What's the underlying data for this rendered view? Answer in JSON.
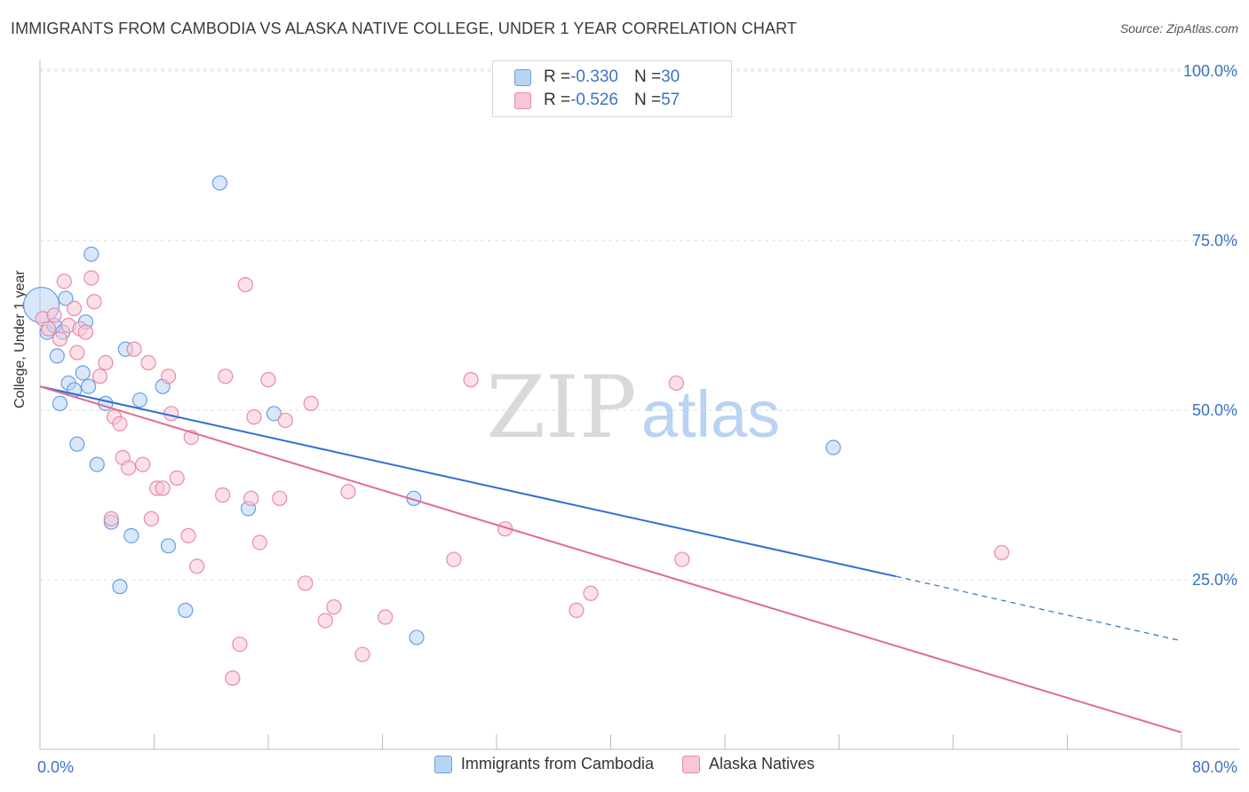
{
  "header": {
    "title": "IMMIGRANTS FROM CAMBODIA VS ALASKA NATIVE COLLEGE, UNDER 1 YEAR CORRELATION CHART",
    "source": "Source: ZipAtlas.com"
  },
  "watermark": {
    "zip": "ZIP",
    "atlas": "atlas"
  },
  "legend_top": {
    "rows": [
      {
        "r_label": "R = ",
        "r_value": "-0.330",
        "n_label": "N = ",
        "n_value": "30",
        "color": "#b8d4f5"
      },
      {
        "r_label": "R = ",
        "r_value": "-0.526",
        "n_label": "N = ",
        "n_value": "57",
        "color": "#f9c6d6"
      }
    ]
  },
  "legend_bottom": {
    "items": [
      {
        "label": "Immigrants from Cambodia",
        "color": "#b8d4f5",
        "border": "#6a9ee0"
      },
      {
        "label": "Alaska Natives",
        "color": "#f9c6d6",
        "border": "#e88aa8"
      }
    ]
  },
  "chart_data": {
    "type": "scatter",
    "title": "IMMIGRANTS FROM CAMBODIA VS ALASKA NATIVE COLLEGE, UNDER 1 YEAR CORRELATION CHART",
    "xlabel": "",
    "ylabel": "College, Under 1 year",
    "xlim": [
      0,
      80
    ],
    "ylim": [
      0,
      105
    ],
    "x_tick_labels": [
      "0.0%",
      "80.0%"
    ],
    "y_ticks": [
      25,
      50,
      75,
      100
    ],
    "y_tick_labels": [
      "25.0%",
      "50.0%",
      "75.0%",
      "100.0%"
    ],
    "grid": true,
    "legend_position": "top-center",
    "series": [
      {
        "name": "Immigrants from Cambodia",
        "color": "#6a9ee0",
        "fill": "#b8d4f5",
        "line_color": "#2f6fcf",
        "points": [
          [
            0.1,
            65.5
          ],
          [
            0.5,
            61.5
          ],
          [
            1.0,
            62.5
          ],
          [
            1.2,
            58.0
          ],
          [
            1.4,
            51.0
          ],
          [
            1.6,
            61.5
          ],
          [
            1.8,
            66.5
          ],
          [
            2.0,
            54.0
          ],
          [
            2.4,
            53.0
          ],
          [
            2.6,
            45.0
          ],
          [
            3.0,
            55.5
          ],
          [
            3.2,
            63.0
          ],
          [
            3.4,
            53.5
          ],
          [
            3.6,
            73.0
          ],
          [
            4.0,
            42.0
          ],
          [
            4.6,
            51.0
          ],
          [
            5.0,
            33.5
          ],
          [
            5.6,
            24.0
          ],
          [
            6.0,
            59.0
          ],
          [
            6.4,
            31.5
          ],
          [
            7.0,
            51.5
          ],
          [
            8.6,
            53.5
          ],
          [
            9.0,
            30.0
          ],
          [
            10.2,
            20.5
          ],
          [
            12.6,
            83.5
          ],
          [
            14.6,
            35.5
          ],
          [
            16.4,
            49.5
          ],
          [
            26.2,
            37.0
          ],
          [
            26.4,
            16.5
          ],
          [
            55.6,
            44.5
          ]
        ],
        "trend": {
          "x": [
            0,
            60
          ],
          "y": [
            53.5,
            25.5
          ],
          "dashed_to": [
            80,
            16.0
          ]
        }
      },
      {
        "name": "Alaska Natives",
        "color": "#e88aa8",
        "fill": "#f9c6d6",
        "line_color": "#e06b94",
        "points": [
          [
            0.2,
            63.5
          ],
          [
            0.6,
            62.0
          ],
          [
            1.0,
            64.0
          ],
          [
            1.4,
            60.5
          ],
          [
            1.7,
            69.0
          ],
          [
            2.0,
            62.5
          ],
          [
            2.4,
            65.0
          ],
          [
            2.6,
            58.5
          ],
          [
            2.8,
            62.0
          ],
          [
            3.2,
            61.5
          ],
          [
            3.6,
            69.5
          ],
          [
            3.8,
            66.0
          ],
          [
            4.2,
            55.0
          ],
          [
            4.6,
            57.0
          ],
          [
            5.0,
            34.0
          ],
          [
            5.2,
            49.0
          ],
          [
            5.6,
            48.0
          ],
          [
            5.8,
            43.0
          ],
          [
            6.2,
            41.5
          ],
          [
            6.6,
            59.0
          ],
          [
            7.2,
            42.0
          ],
          [
            7.6,
            57.0
          ],
          [
            7.8,
            34.0
          ],
          [
            8.2,
            38.5
          ],
          [
            8.6,
            38.5
          ],
          [
            9.0,
            55.0
          ],
          [
            9.2,
            49.5
          ],
          [
            9.6,
            40.0
          ],
          [
            10.4,
            31.5
          ],
          [
            10.6,
            46.0
          ],
          [
            11.0,
            27.0
          ],
          [
            12.8,
            37.5
          ],
          [
            13.0,
            55.0
          ],
          [
            13.5,
            10.5
          ],
          [
            14.0,
            15.5
          ],
          [
            14.4,
            68.5
          ],
          [
            14.8,
            37.0
          ],
          [
            15.0,
            49.0
          ],
          [
            15.4,
            30.5
          ],
          [
            16.0,
            54.5
          ],
          [
            16.8,
            37.0
          ],
          [
            17.2,
            48.5
          ],
          [
            18.6,
            24.5
          ],
          [
            19.0,
            51.0
          ],
          [
            20.0,
            19.0
          ],
          [
            20.6,
            21.0
          ],
          [
            21.6,
            38.0
          ],
          [
            22.6,
            14.0
          ],
          [
            24.2,
            19.5
          ],
          [
            29.0,
            28.0
          ],
          [
            30.2,
            54.5
          ],
          [
            32.6,
            32.5
          ],
          [
            37.6,
            20.5
          ],
          [
            38.6,
            23.0
          ],
          [
            44.6,
            54.0
          ],
          [
            45.0,
            28.0
          ],
          [
            67.4,
            29.0
          ]
        ],
        "trend": {
          "x": [
            0,
            80
          ],
          "y": [
            53.5,
            2.5
          ]
        }
      }
    ]
  }
}
